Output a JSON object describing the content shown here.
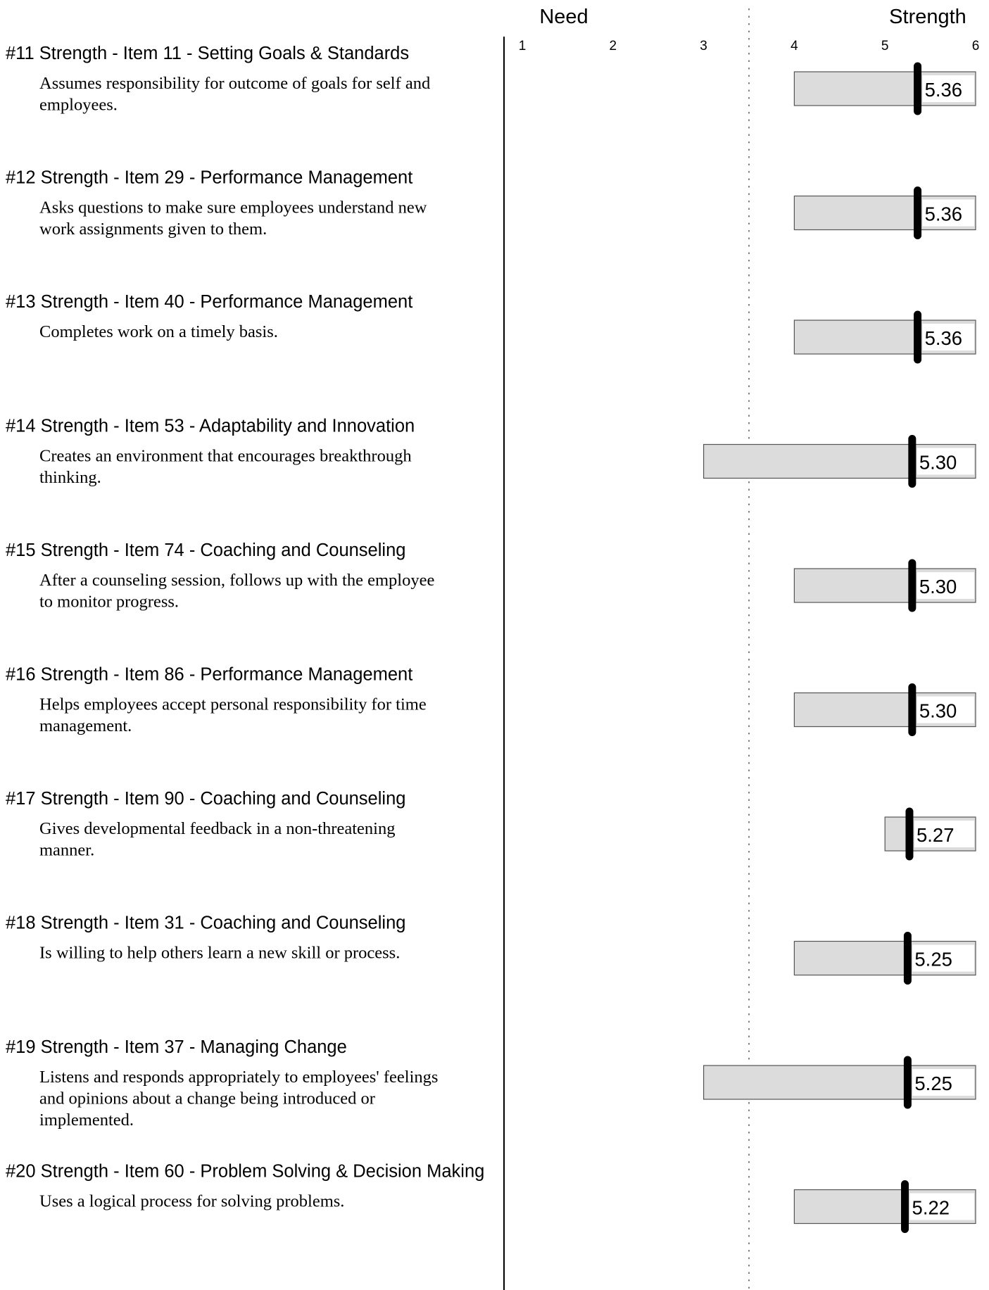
{
  "header": {
    "left": "Need",
    "right": "Strength"
  },
  "chart_data": {
    "type": "bar",
    "scale": {
      "min": 1,
      "max": 6,
      "midpoint": 3.5
    },
    "ticks": [
      "1",
      "2",
      "3",
      "4",
      "5",
      "6"
    ],
    "items": [
      {
        "title": "#11 Strength - Item 11 - Setting Goals & Standards",
        "desc": [
          "Assumes responsibility for outcome of goals for self and",
          "employees."
        ],
        "range": [
          4,
          6
        ],
        "mean": 5.36,
        "label": "5.36"
      },
      {
        "title": "#12 Strength - Item 29 - Performance Management",
        "desc": [
          "Asks questions to make sure employees understand new",
          "work assignments given to them."
        ],
        "range": [
          4,
          6
        ],
        "mean": 5.36,
        "label": "5.36"
      },
      {
        "title": "#13 Strength - Item 40 - Performance Management",
        "desc": [
          "Completes work on a timely basis."
        ],
        "range": [
          4,
          6
        ],
        "mean": 5.36,
        "label": "5.36"
      },
      {
        "title": "#14 Strength - Item 53 - Adaptability and Innovation",
        "desc": [
          "Creates an environment that encourages breakthrough",
          "thinking."
        ],
        "range": [
          3,
          6
        ],
        "mean": 5.3,
        "label": "5.30"
      },
      {
        "title": "#15 Strength - Item 74 - Coaching and Counseling",
        "desc": [
          "After a counseling session, follows up with the employee",
          "to monitor progress."
        ],
        "range": [
          4,
          6
        ],
        "mean": 5.3,
        "label": "5.30"
      },
      {
        "title": "#16 Strength - Item 86 - Performance Management",
        "desc": [
          "Helps employees accept personal responsibility for time",
          "management."
        ],
        "range": [
          4,
          6
        ],
        "mean": 5.3,
        "label": "5.30"
      },
      {
        "title": "#17 Strength - Item 90 - Coaching and Counseling",
        "desc": [
          "Gives developmental feedback in a non-threatening",
          "manner."
        ],
        "range": [
          5,
          6
        ],
        "mean": 5.27,
        "label": "5.27"
      },
      {
        "title": "#18 Strength - Item 31 - Coaching and Counseling",
        "desc": [
          "Is willing to help others learn a new skill or process."
        ],
        "range": [
          4,
          6
        ],
        "mean": 5.25,
        "label": "5.25"
      },
      {
        "title": "#19 Strength - Item 37 - Managing Change",
        "desc": [
          "Listens and responds appropriately to employees' feelings",
          "and opinions about a change being introduced or",
          "implemented."
        ],
        "range": [
          3,
          6
        ],
        "mean": 5.25,
        "label": "5.25"
      },
      {
        "title": "#20 Strength - Item 60 - Problem Solving & Decision Making",
        "desc": [
          "Uses a logical process for solving problems."
        ],
        "range": [
          4,
          6
        ],
        "mean": 5.22,
        "label": "5.22"
      }
    ]
  }
}
